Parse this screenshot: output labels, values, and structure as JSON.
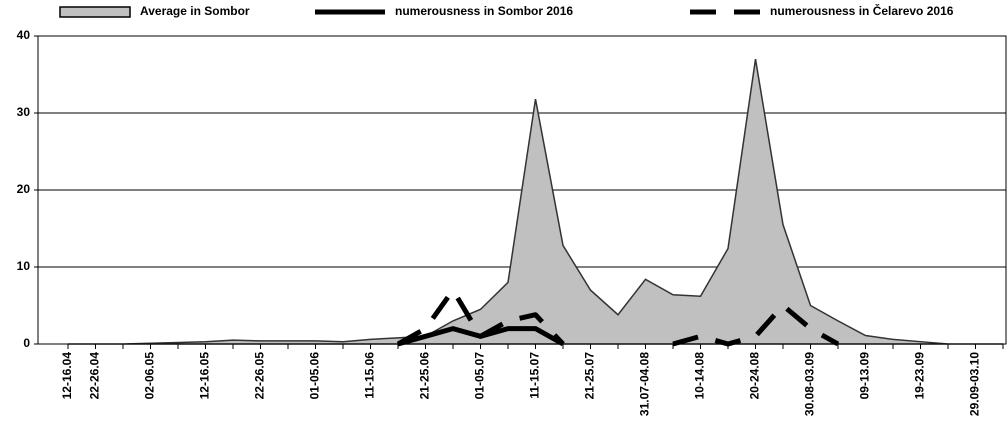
{
  "chart_data": {
    "type": "line",
    "categories": [
      "12-16.04",
      "22-26.04",
      null,
      "02-06.05",
      null,
      "12-16.05",
      null,
      "22-26.05",
      null,
      "01-05.06",
      null,
      "11-15.06",
      null,
      "21-25.06",
      null,
      "01-05.07",
      null,
      "11-15.07",
      null,
      "21-25.07",
      null,
      "31.07-04.08",
      null,
      "10-14.08",
      null,
      "20-24.08",
      null,
      "30.08-03.09",
      null,
      "09-13.09",
      null,
      "19-23.09",
      null,
      "29.09-03.10",
      null
    ],
    "series": [
      {
        "name": "Average in Sombor",
        "style": "area",
        "color": "#c0c0c0",
        "values": [
          0,
          0,
          0,
          0.1,
          0.2,
          0.3,
          0.5,
          0.4,
          0.4,
          0.4,
          0.3,
          0.6,
          0.8,
          1,
          3,
          4.5,
          8,
          31.8,
          12.8,
          7,
          3.8,
          8.4,
          6.4,
          6.2,
          12.4,
          37,
          15.5,
          5,
          3,
          1.1,
          0.6,
          0.3,
          0,
          0,
          0
        ]
      },
      {
        "name": "numerousness in Sombor 2016",
        "style": "solid",
        "color": "#000000",
        "values": [
          null,
          null,
          null,
          null,
          null,
          null,
          null,
          null,
          null,
          null,
          null,
          null,
          0,
          1,
          2,
          1,
          2,
          2,
          0,
          null,
          null,
          null,
          null,
          null,
          null,
          null,
          null,
          null,
          null,
          null,
          null,
          null,
          null,
          null,
          null
        ]
      },
      {
        "name": "numerousness in Čelarevo 2016",
        "style": "dashed",
        "color": "#000000",
        "values": [
          null,
          null,
          null,
          null,
          null,
          null,
          null,
          null,
          null,
          null,
          null,
          null,
          0,
          2,
          7,
          1,
          3,
          3.8,
          0,
          null,
          null,
          null,
          0,
          1,
          0,
          1,
          5,
          2,
          0,
          null,
          null,
          null,
          null,
          null,
          null
        ]
      }
    ],
    "ylim": [
      0,
      40
    ],
    "yticks": [
      0,
      10,
      20,
      30,
      40
    ],
    "grid": true,
    "legend": "top"
  }
}
